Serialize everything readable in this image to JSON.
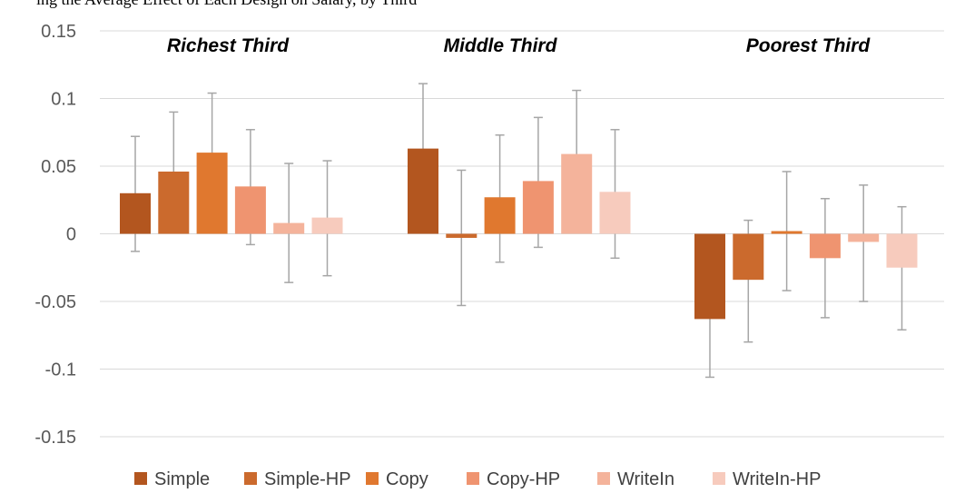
{
  "caption_fragment": "ing the Average Effect of Each Design on Salary, by Third",
  "chart_data": {
    "type": "bar",
    "groups": [
      "Richest Third",
      "Middle Third",
      "Poorest Third"
    ],
    "ylim": [
      -0.15,
      0.15
    ],
    "yticks": [
      0.15,
      0.1,
      0.05,
      0,
      -0.05,
      -0.1,
      -0.15
    ],
    "ytick_labels": [
      "0.15",
      "0.1",
      "0.05",
      "0",
      "-0.05",
      "-0.1",
      "-0.15"
    ],
    "grid": true,
    "legend_position": "bottom",
    "series": [
      {
        "name": "Simple",
        "color": "#b3561f",
        "values": [
          0.03,
          0.063,
          -0.063
        ],
        "err_low": [
          -0.013,
          0.015,
          -0.106
        ],
        "err_high": [
          0.072,
          0.111,
          -0.019
        ]
      },
      {
        "name": "Simple-HP",
        "color": "#cb6a2d",
        "values": [
          0.046,
          -0.003,
          -0.034
        ],
        "err_low": [
          0.002,
          -0.053,
          -0.08
        ],
        "err_high": [
          0.09,
          0.047,
          0.01
        ]
      },
      {
        "name": "Copy",
        "color": "#e0782f",
        "values": [
          0.06,
          0.027,
          0.002
        ],
        "err_low": [
          0.015,
          -0.021,
          -0.042
        ],
        "err_high": [
          0.104,
          0.073,
          0.046
        ]
      },
      {
        "name": "Copy-HP",
        "color": "#ef9470",
        "values": [
          0.035,
          0.039,
          -0.018
        ],
        "err_low": [
          -0.008,
          -0.01,
          -0.062
        ],
        "err_high": [
          0.077,
          0.086,
          0.026
        ]
      },
      {
        "name": "WriteIn",
        "color": "#f4b39b",
        "values": [
          0.008,
          0.059,
          -0.006
        ],
        "err_low": [
          -0.036,
          0.013,
          -0.05
        ],
        "err_high": [
          0.052,
          0.106,
          0.036
        ]
      },
      {
        "name": "WriteIn-HP",
        "color": "#f7cbbd",
        "values": [
          0.012,
          0.031,
          -0.025
        ],
        "err_low": [
          -0.031,
          -0.018,
          -0.071
        ],
        "err_high": [
          0.054,
          0.077,
          0.02
        ]
      }
    ]
  }
}
